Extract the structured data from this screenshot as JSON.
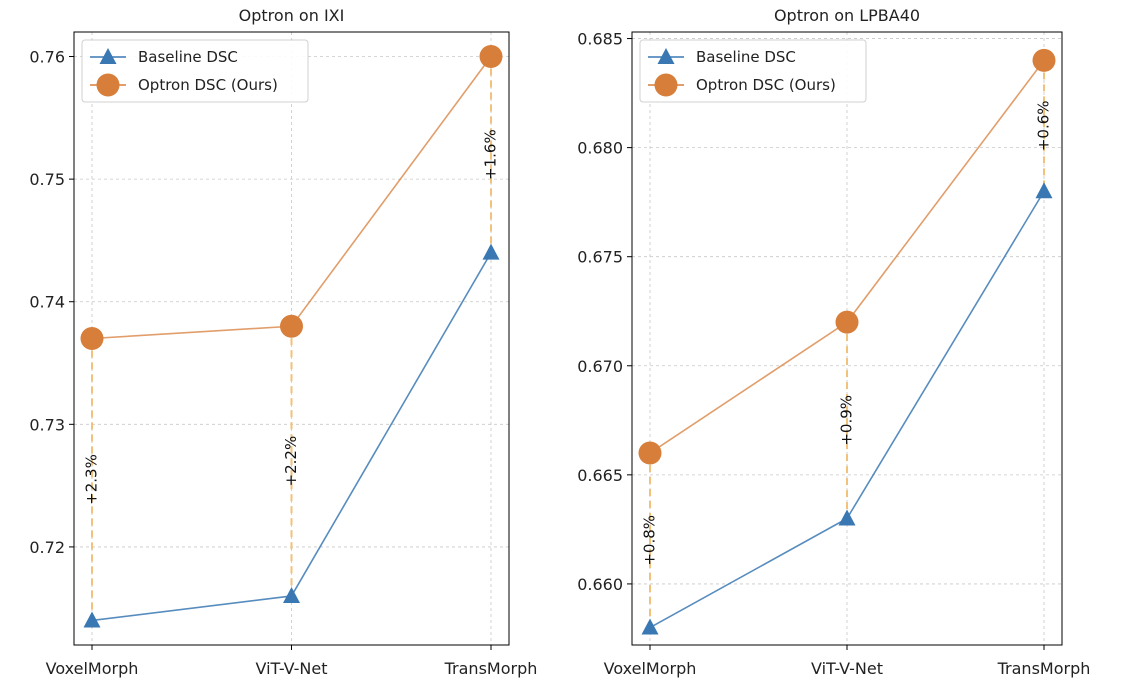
{
  "chart_data": [
    {
      "type": "line",
      "title": "Optron on IXI",
      "xlabel": "",
      "ylabel": "",
      "categories": [
        "VoxelMorph",
        "ViT-V-Net",
        "TransMorph"
      ],
      "ylim": [
        0.712,
        0.762
      ],
      "yticks": [
        0.72,
        0.73,
        0.74,
        0.75,
        0.76
      ],
      "ytick_labels": [
        "0.72",
        "0.73",
        "0.74",
        "0.75",
        "0.76"
      ],
      "grid": true,
      "legend_position": "top-left",
      "series": [
        {
          "name": "Baseline DSC",
          "values": [
            0.714,
            0.716,
            0.744
          ],
          "color": "#3a78b3",
          "marker": "triangle"
        },
        {
          "name": "Optron DSC (Ours)",
          "values": [
            0.737,
            0.738,
            0.76
          ],
          "color": "#d77e3a",
          "marker": "circle"
        }
      ],
      "annotations": [
        "+2.3%",
        "+2.2%",
        "+1.6%"
      ]
    },
    {
      "type": "line",
      "title": "Optron on LPBA40",
      "xlabel": "",
      "ylabel": "",
      "categories": [
        "VoxelMorph",
        "ViT-V-Net",
        "TransMorph"
      ],
      "ylim": [
        0.6572,
        0.6853
      ],
      "yticks": [
        0.66,
        0.665,
        0.67,
        0.675,
        0.68,
        0.685
      ],
      "ytick_labels": [
        "0.660",
        "0.665",
        "0.670",
        "0.675",
        "0.680",
        "0.685"
      ],
      "grid": true,
      "legend_position": "top-left",
      "series": [
        {
          "name": "Baseline DSC",
          "values": [
            0.658,
            0.663,
            0.678
          ],
          "color": "#3a78b3",
          "marker": "triangle"
        },
        {
          "name": "Optron DSC (Ours)",
          "values": [
            0.666,
            0.672,
            0.684
          ],
          "color": "#d77e3a",
          "marker": "circle"
        }
      ],
      "annotations": [
        "+0.8%",
        "+0.9%",
        "+0.6%"
      ]
    }
  ]
}
